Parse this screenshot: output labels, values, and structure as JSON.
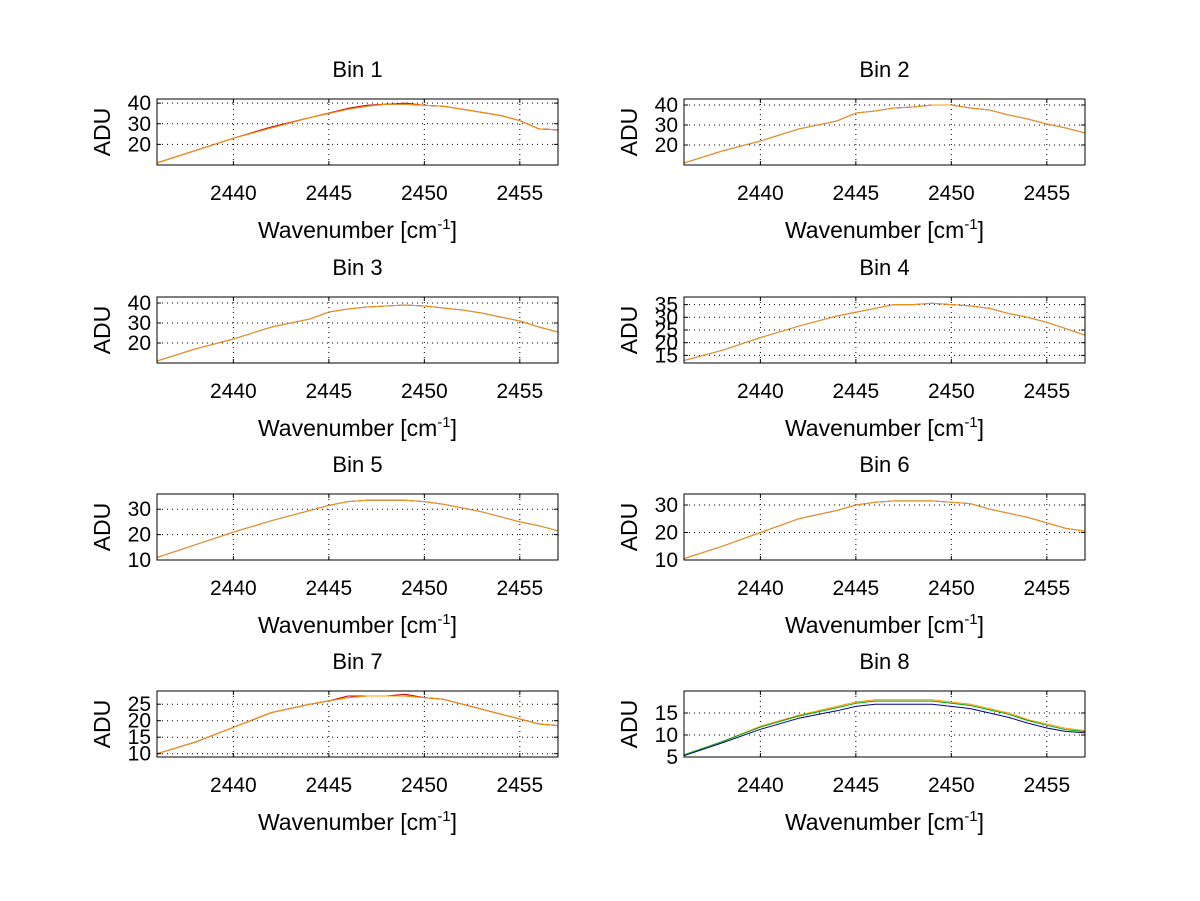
{
  "chart_data": [
    {
      "type": "line",
      "title": "Bin 1",
      "xlabel": "Wavenumber [cm",
      "xlabel_sup": "-1",
      "xlabel_end": "]",
      "ylabel": "ADU",
      "xlim": [
        2436,
        2457
      ],
      "ylim": [
        10,
        42
      ],
      "xticks": [
        2440,
        2445,
        2450,
        2455
      ],
      "yticks": [
        20,
        30,
        40
      ],
      "grid": true,
      "series": [
        {
          "color": "#0000cc",
          "x": [
            2436,
            2438,
            2440,
            2442,
            2444,
            2446,
            2447,
            2448,
            2449,
            2450,
            2451,
            2452,
            2453,
            2454,
            2455,
            2456,
            2457
          ],
          "y": [
            11,
            17,
            23,
            28,
            33,
            37,
            38.5,
            39.5,
            39.5,
            39,
            38.5,
            37,
            35.5,
            34,
            31.5,
            27.5,
            27
          ]
        },
        {
          "color": "#cc0000",
          "x": [
            2436,
            2438,
            2440,
            2442,
            2444,
            2446,
            2447,
            2448,
            2449,
            2450,
            2451,
            2452,
            2453,
            2454,
            2455,
            2456,
            2457
          ],
          "y": [
            11,
            17,
            23,
            28.5,
            33,
            37.5,
            39,
            39.5,
            40,
            39,
            38.5,
            37,
            35.5,
            34,
            31.5,
            27.5,
            27
          ]
        },
        {
          "color": "#ff9900",
          "x": [
            2436,
            2438,
            2440,
            2442,
            2444,
            2446,
            2447,
            2448,
            2449,
            2450,
            2451,
            2452,
            2453,
            2454,
            2455,
            2456,
            2457
          ],
          "y": [
            11,
            17,
            23,
            28,
            33,
            37,
            38.5,
            39.5,
            39.5,
            39,
            38.5,
            37,
            35.5,
            34,
            31.5,
            27.5,
            27
          ]
        }
      ]
    },
    {
      "type": "line",
      "title": "Bin 2",
      "xlabel": "Wavenumber [cm",
      "xlabel_sup": "-1",
      "xlabel_end": "]",
      "ylabel": "ADU",
      "xlim": [
        2436,
        2457
      ],
      "ylim": [
        10,
        43
      ],
      "xticks": [
        2440,
        2445,
        2450,
        2455
      ],
      "yticks": [
        20,
        30,
        40
      ],
      "grid": true,
      "series": [
        {
          "color": "#0000cc",
          "x": [
            2436,
            2438,
            2440,
            2442,
            2444,
            2445,
            2446,
            2447,
            2448,
            2449,
            2450,
            2451,
            2452,
            2453,
            2454,
            2455,
            2456,
            2457
          ],
          "y": [
            11,
            17,
            22,
            28,
            32,
            36,
            37,
            38.5,
            39,
            40,
            40,
            38.5,
            37.5,
            35,
            33,
            30.5,
            28.5,
            26
          ]
        },
        {
          "color": "#ff9900",
          "x": [
            2436,
            2438,
            2440,
            2442,
            2444,
            2445,
            2446,
            2447,
            2448,
            2449,
            2450,
            2451,
            2452,
            2453,
            2454,
            2455,
            2456,
            2457
          ],
          "y": [
            11,
            17,
            22,
            28,
            32,
            36,
            37,
            38.5,
            39,
            40,
            40,
            38.5,
            37.5,
            35,
            33,
            30.5,
            28.5,
            26
          ]
        }
      ]
    },
    {
      "type": "line",
      "title": "Bin 3",
      "xlabel": "Wavenumber [cm",
      "xlabel_sup": "-1",
      "xlabel_end": "]",
      "ylabel": "ADU",
      "xlim": [
        2436,
        2457
      ],
      "ylim": [
        10,
        43
      ],
      "xticks": [
        2440,
        2445,
        2450,
        2455
      ],
      "yticks": [
        20,
        30,
        40
      ],
      "grid": true,
      "series": [
        {
          "color": "#0000cc",
          "x": [
            2436,
            2438,
            2440,
            2442,
            2444,
            2445,
            2446,
            2447,
            2448,
            2449,
            2450,
            2451,
            2452,
            2453,
            2454,
            2455,
            2456,
            2457
          ],
          "y": [
            11,
            17,
            22,
            28,
            32,
            35.5,
            37,
            38,
            38.5,
            39,
            38.5,
            37.5,
            36.5,
            35,
            33,
            31,
            28,
            25.5
          ]
        },
        {
          "color": "#ff9900",
          "x": [
            2436,
            2438,
            2440,
            2442,
            2444,
            2445,
            2446,
            2447,
            2448,
            2449,
            2450,
            2451,
            2452,
            2453,
            2454,
            2455,
            2456,
            2457
          ],
          "y": [
            11,
            17,
            22,
            28,
            32,
            35.5,
            37,
            38,
            38.5,
            39,
            38.5,
            37.5,
            36.5,
            35,
            33,
            31,
            28,
            25.5
          ]
        }
      ]
    },
    {
      "type": "line",
      "title": "Bin 4",
      "xlabel": "Wavenumber [cm",
      "xlabel_sup": "-1",
      "xlabel_end": "]",
      "ylabel": "ADU",
      "xlim": [
        2436,
        2457
      ],
      "ylim": [
        12,
        38
      ],
      "xticks": [
        2440,
        2445,
        2450,
        2455
      ],
      "yticks": [
        15,
        20,
        25,
        30,
        35
      ],
      "grid": true,
      "series": [
        {
          "color": "#0000cc",
          "x": [
            2436,
            2438,
            2440,
            2442,
            2444,
            2446,
            2447,
            2448,
            2449,
            2450,
            2451,
            2452,
            2453,
            2454,
            2455,
            2456,
            2457
          ],
          "y": [
            13,
            17,
            22,
            26.5,
            30.5,
            33.5,
            35,
            35,
            35.5,
            35,
            34.5,
            33.5,
            31.5,
            30,
            28,
            25.5,
            23
          ]
        },
        {
          "color": "#ff9900",
          "x": [
            2436,
            2438,
            2440,
            2442,
            2444,
            2446,
            2447,
            2448,
            2449,
            2450,
            2451,
            2452,
            2453,
            2454,
            2455,
            2456,
            2457
          ],
          "y": [
            13,
            17,
            22,
            26.5,
            30.5,
            33.5,
            35,
            35,
            35.5,
            35,
            34.5,
            33.5,
            31.5,
            30,
            28,
            25.5,
            23
          ]
        }
      ]
    },
    {
      "type": "line",
      "title": "Bin 5",
      "xlabel": "Wavenumber [cm",
      "xlabel_sup": "-1",
      "xlabel_end": "]",
      "ylabel": "ADU",
      "xlim": [
        2436,
        2457
      ],
      "ylim": [
        10,
        36
      ],
      "xticks": [
        2440,
        2445,
        2450,
        2455
      ],
      "yticks": [
        10,
        20,
        30
      ],
      "grid": true,
      "series": [
        {
          "color": "#0000cc",
          "x": [
            2436,
            2438,
            2440,
            2442,
            2444,
            2445,
            2446,
            2447,
            2448,
            2449,
            2450,
            2451,
            2452,
            2453,
            2454,
            2455,
            2456,
            2457
          ],
          "y": [
            11,
            16,
            21,
            25.5,
            29.5,
            31.5,
            33,
            33.5,
            33.5,
            33.5,
            33,
            32,
            30.5,
            29,
            27,
            25,
            23.5,
            21.5
          ]
        },
        {
          "color": "#ff9900",
          "x": [
            2436,
            2438,
            2440,
            2442,
            2444,
            2445,
            2446,
            2447,
            2448,
            2449,
            2450,
            2451,
            2452,
            2453,
            2454,
            2455,
            2456,
            2457
          ],
          "y": [
            11,
            16,
            21,
            25.5,
            29.5,
            31.5,
            33,
            33.5,
            33.5,
            33.5,
            33,
            32,
            30.5,
            29,
            27,
            25,
            23.5,
            21.5
          ]
        }
      ]
    },
    {
      "type": "line",
      "title": "Bin 6",
      "xlabel": "Wavenumber [cm",
      "xlabel_sup": "-1",
      "xlabel_end": "]",
      "ylabel": "ADU",
      "xlim": [
        2436,
        2457
      ],
      "ylim": [
        10,
        34
      ],
      "xticks": [
        2440,
        2445,
        2450,
        2455
      ],
      "yticks": [
        10,
        20,
        30
      ],
      "grid": true,
      "series": [
        {
          "color": "#0000cc",
          "x": [
            2436,
            2438,
            2440,
            2442,
            2444,
            2445,
            2446,
            2447,
            2448,
            2449,
            2450,
            2451,
            2452,
            2453,
            2454,
            2455,
            2456,
            2457
          ],
          "y": [
            10.5,
            15,
            20,
            25,
            28,
            30,
            31,
            31.5,
            31.5,
            31.5,
            31,
            30.5,
            28.5,
            27,
            25.5,
            23.5,
            21.5,
            20.5
          ]
        },
        {
          "color": "#ff9900",
          "x": [
            2436,
            2438,
            2440,
            2442,
            2444,
            2445,
            2446,
            2447,
            2448,
            2449,
            2450,
            2451,
            2452,
            2453,
            2454,
            2455,
            2456,
            2457
          ],
          "y": [
            10.5,
            15,
            20,
            25,
            28,
            30,
            31,
            31.5,
            31.5,
            31.5,
            31,
            30.5,
            28.5,
            27,
            25.5,
            23.5,
            21.5,
            20.5
          ]
        }
      ]
    },
    {
      "type": "line",
      "title": "Bin 7",
      "xlabel": "Wavenumber [cm",
      "xlabel_sup": "-1",
      "xlabel_end": "]",
      "ylabel": "ADU",
      "xlim": [
        2436,
        2457
      ],
      "ylim": [
        9,
        29
      ],
      "xticks": [
        2440,
        2445,
        2450,
        2455
      ],
      "yticks": [
        10,
        15,
        20,
        25
      ],
      "grid": true,
      "series": [
        {
          "color": "#0000cc",
          "x": [
            2436,
            2438,
            2440,
            2442,
            2444,
            2445,
            2446,
            2447,
            2448,
            2449,
            2450,
            2451,
            2452,
            2453,
            2454,
            2455,
            2456,
            2457
          ],
          "y": [
            10,
            13.5,
            18,
            22.5,
            25,
            26,
            27,
            27.5,
            27.5,
            27.5,
            27,
            26.5,
            25,
            23.5,
            22,
            20.5,
            19,
            18.5
          ]
        },
        {
          "color": "#cc0000",
          "x": [
            2436,
            2438,
            2440,
            2442,
            2444,
            2445,
            2446,
            2447,
            2448,
            2449,
            2450,
            2451,
            2452,
            2453,
            2454,
            2455,
            2456,
            2457
          ],
          "y": [
            10,
            13.5,
            18,
            22.5,
            25,
            26,
            27.5,
            27.5,
            27.5,
            28,
            27,
            26.5,
            25,
            23.5,
            22,
            20.5,
            19,
            18.5
          ]
        },
        {
          "color": "#ff9900",
          "x": [
            2436,
            2438,
            2440,
            2442,
            2444,
            2445,
            2446,
            2447,
            2448,
            2449,
            2450,
            2451,
            2452,
            2453,
            2454,
            2455,
            2456,
            2457
          ],
          "y": [
            10,
            13.5,
            18,
            22.5,
            25,
            26,
            27,
            27.5,
            27.5,
            27.5,
            27,
            26.5,
            25,
            23.5,
            22,
            20.5,
            19,
            18.5
          ]
        }
      ]
    },
    {
      "type": "line",
      "title": "Bin 8",
      "xlabel": "Wavenumber [cm",
      "xlabel_sup": "-1",
      "xlabel_end": "]",
      "ylabel": "ADU",
      "xlim": [
        2436,
        2457
      ],
      "ylim": [
        5,
        20
      ],
      "xticks": [
        2440,
        2445,
        2450,
        2455
      ],
      "yticks": [
        5,
        10,
        15
      ],
      "grid": true,
      "series": [
        {
          "color": "#ff9900",
          "x": [
            2436,
            2438,
            2440,
            2442,
            2444,
            2445,
            2446,
            2447,
            2448,
            2449,
            2450,
            2451,
            2452,
            2453,
            2454,
            2455,
            2456,
            2457
          ],
          "y": [
            5.5,
            8.5,
            12,
            14.5,
            16.5,
            17.5,
            18,
            18,
            18,
            18,
            17.5,
            17,
            16,
            15,
            13.5,
            12.5,
            11.5,
            11
          ]
        },
        {
          "color": "#00aa00",
          "x": [
            2436,
            2438,
            2440,
            2442,
            2444,
            2445,
            2446,
            2447,
            2448,
            2449,
            2450,
            2451,
            2452,
            2453,
            2454,
            2455,
            2456,
            2457
          ],
          "y": [
            5.5,
            8.5,
            11.8,
            14.3,
            16.2,
            17.2,
            17.7,
            17.7,
            17.7,
            17.7,
            17.2,
            16.7,
            15.7,
            14.7,
            13.3,
            12.2,
            11.2,
            10.8
          ]
        },
        {
          "color": "#000099",
          "x": [
            2436,
            2438,
            2440,
            2442,
            2444,
            2445,
            2446,
            2447,
            2448,
            2449,
            2450,
            2451,
            2452,
            2453,
            2454,
            2455,
            2456,
            2457
          ],
          "y": [
            5.3,
            8.2,
            11.3,
            13.8,
            15.5,
            16.5,
            17,
            17,
            17,
            17,
            16.5,
            16,
            15,
            14,
            12.7,
            11.6,
            10.8,
            10.5
          ]
        }
      ]
    }
  ]
}
